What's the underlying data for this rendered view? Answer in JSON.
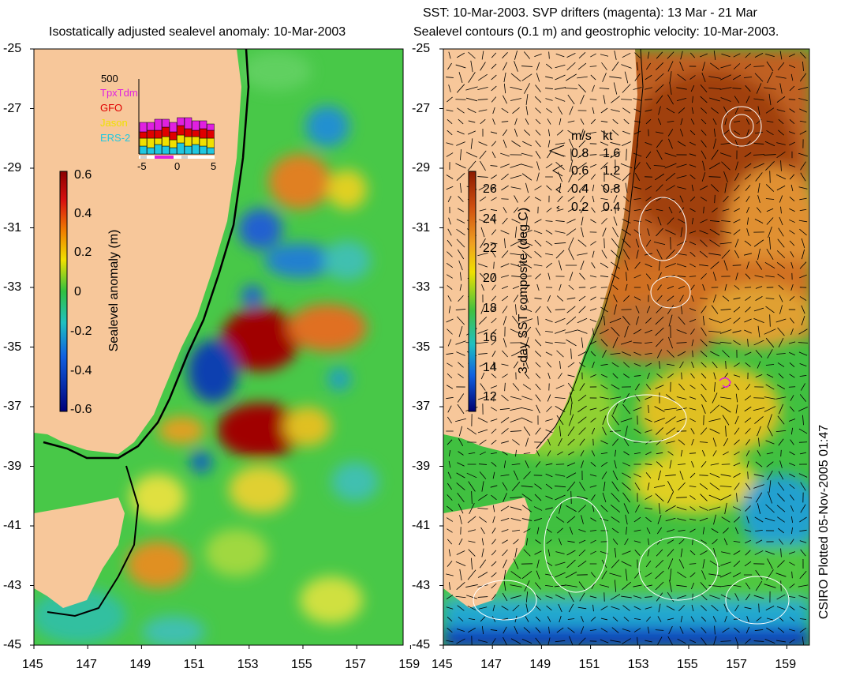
{
  "left_panel": {
    "title": "Isostatically adjusted sealevel anomaly: 10-Mar-2003",
    "colorbar": {
      "label": "Sealevel anomaly (m)",
      "ticks": [
        "0.6",
        "0.4",
        "0.2",
        "0",
        "-0.2",
        "-0.4",
        "-0.6"
      ]
    },
    "inset": {
      "ymax_label": "500",
      "legend": [
        {
          "name": "TpxTdm",
          "color": "#e020e0"
        },
        {
          "name": "GFO",
          "color": "#e00000"
        },
        {
          "name": "Jason",
          "color": "#f0e000"
        },
        {
          "name": "ERS-2",
          "color": "#20c8e0"
        }
      ],
      "x_ticks": [
        "-5",
        "0",
        "5"
      ]
    }
  },
  "right_panel": {
    "title_line1": "SST: 10-Mar-2003. SVP drifters (magenta): 13 Mar - 21 Mar",
    "title_line2": "Sealevel contours (0.1 m) and geostrophic velocity: 10-Mar-2003.",
    "colorbar": {
      "label": "3-day SST composite (deg C)",
      "ticks": [
        "26",
        "24",
        "22",
        "20",
        "18",
        "16",
        "14",
        "12"
      ]
    },
    "velocity_legend": {
      "header_ms": "m/s",
      "header_kt": "kt",
      "rows": [
        {
          "ms": "0.8",
          "kt": "1.6"
        },
        {
          "ms": "0.6",
          "kt": "1.2"
        },
        {
          "ms": "0.4",
          "kt": "0.8"
        },
        {
          "ms": "0.2",
          "kt": "0.4"
        }
      ]
    }
  },
  "y_ticks": [
    "-25",
    "-27",
    "-29",
    "-31",
    "-33",
    "-35",
    "-37",
    "-39",
    "-41",
    "-43",
    "-45"
  ],
  "x_ticks": [
    "145",
    "147",
    "149",
    "151",
    "153",
    "155",
    "157",
    "159"
  ],
  "credit": "CSIRO Plotted 05-Nov-2005 01:47",
  "colors": {
    "land": "#f7c79a",
    "ocean_base": "#4ccc4c",
    "coast": "#000000"
  }
}
